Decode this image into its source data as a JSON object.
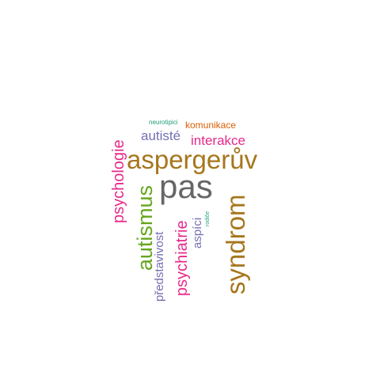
{
  "words": [
    {
      "text": "neurotipici",
      "color": "#1b9e77"
    },
    {
      "text": "komunikace",
      "color": "#d95f02"
    },
    {
      "text": "autisté",
      "color": "#7570b3"
    },
    {
      "text": "interakce",
      "color": "#e7298a"
    },
    {
      "text": "psychologie",
      "color": "#e7298a"
    },
    {
      "text": "aspergerův",
      "color": "#a6761d"
    },
    {
      "text": "pas",
      "color": "#666666"
    },
    {
      "text": "autismus",
      "color": "#66a61e"
    },
    {
      "text": "syndrom",
      "color": "#a6761d"
    },
    {
      "text": "představivost",
      "color": "#7570b3"
    },
    {
      "text": "psychiatrie",
      "color": "#e7298a"
    },
    {
      "text": "aspíci",
      "color": "#7570b3"
    },
    {
      "text": "rodiče",
      "color": "#1b9e77"
    }
  ]
}
